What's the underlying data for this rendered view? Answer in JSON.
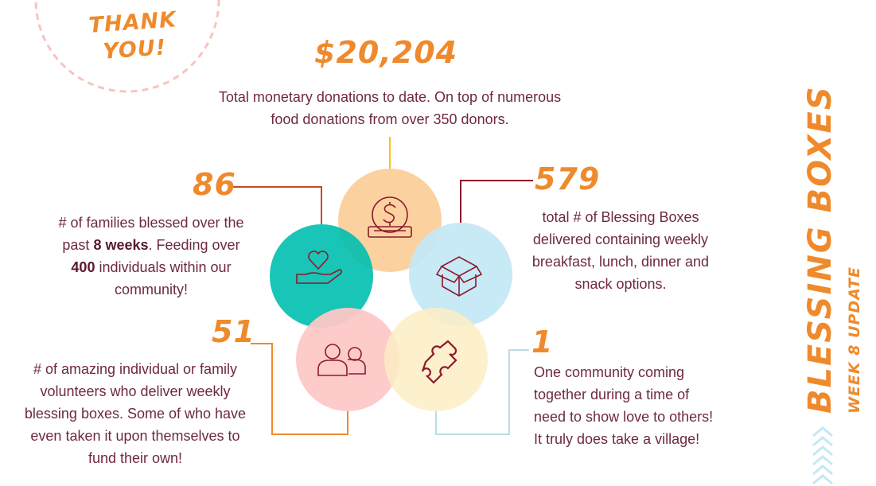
{
  "thank_you": {
    "line1": "THANK",
    "line2": "YOU!"
  },
  "title": {
    "main": "BLESSING BOXES",
    "sub": "WEEK 8 UPDATE"
  },
  "colors": {
    "orange": "#ef8a2c",
    "teal": "#00bfaf",
    "peach": "#fccf9b",
    "light_blue": "#c5e8f5",
    "pink": "#fec8c8",
    "yellow": "#fdedc4",
    "maroon": "#8b1a2b"
  },
  "stats": {
    "donations": {
      "value": "$20,204",
      "text": "Total monetary donations to date. On top of numerous food donations  from over 350 donors.",
      "icon": "dollar-coin-icon"
    },
    "families": {
      "value": "86",
      "text_a": "# of families blessed over the past ",
      "bold_a": "8 weeks",
      "text_b": ".  Feeding over ",
      "bold_b": "400",
      "text_c": " individuals within our community!",
      "icon": "heart-hand-icon"
    },
    "boxes": {
      "value": "579",
      "text": "total # of Blessing Boxes delivered containing weekly breakfast, lunch, dinner and snack options.",
      "icon": "open-box-icon"
    },
    "volunteers": {
      "value": "51",
      "text": "# of amazing individual or family volunteers who deliver weekly blessing boxes.  Some of who have even taken it upon themselves to fund their own!",
      "icon": "people-icon"
    },
    "community": {
      "value": "1",
      "text": "One community coming together during a time of need to show love to others! It truly does take a village!",
      "icon": "puzzle-piece-icon"
    }
  }
}
